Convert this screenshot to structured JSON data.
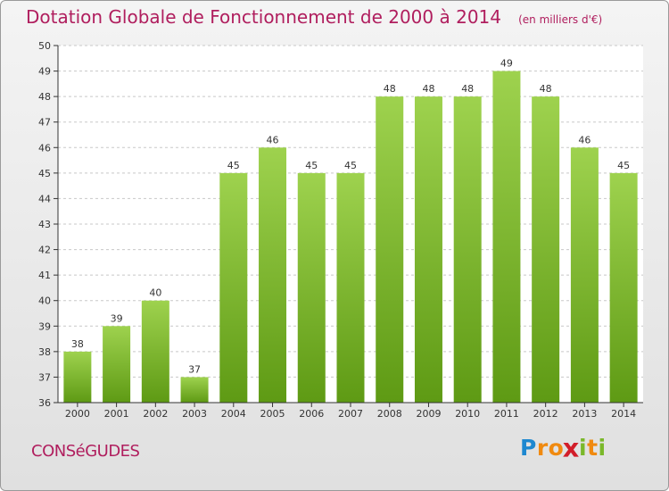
{
  "title": {
    "main": "Dotation Globale de Fonctionnement de 2000 à 2014",
    "sub": "(en milliers d'€)"
  },
  "commune": "CONSéGUDES",
  "logo": {
    "letters": [
      {
        "ch": "P",
        "color": "#1e88d0"
      },
      {
        "ch": "r",
        "color": "#f08a10"
      },
      {
        "ch": "o",
        "color": "#f08a10"
      },
      {
        "ch": "x",
        "color": "#d21e2a"
      },
      {
        "ch": "i",
        "color": "#7ab82a"
      },
      {
        "ch": "t",
        "color": "#f08a10"
      },
      {
        "ch": "i",
        "color": "#7ab82a"
      }
    ]
  },
  "colors": {
    "title": "#b01e5e",
    "bar_top": "#9ed24e",
    "bar_bottom": "#5e9a14",
    "grid": "#c8c8c8",
    "axis": "#333333"
  },
  "chart_data": {
    "type": "bar",
    "categories": [
      "2000",
      "2001",
      "2002",
      "2003",
      "2004",
      "2005",
      "2006",
      "2007",
      "2008",
      "2009",
      "2010",
      "2011",
      "2012",
      "2013",
      "2014"
    ],
    "values": [
      38,
      39,
      40,
      37,
      45,
      46,
      45,
      45,
      48,
      48,
      48,
      49,
      48,
      46,
      45
    ],
    "ylim": [
      36,
      50
    ],
    "yticks": [
      36,
      37,
      38,
      39,
      40,
      41,
      42,
      43,
      44,
      45,
      46,
      47,
      48,
      49,
      50
    ],
    "grid": true,
    "data_labels": true
  }
}
